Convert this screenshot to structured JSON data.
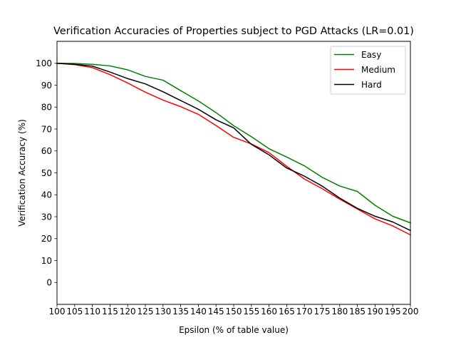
{
  "chart_data": {
    "type": "line",
    "title": "Verification Accuracies of Properties subject to PGD Attacks (LR=0.01)",
    "xlabel": "Epsilon (% of table value)",
    "ylabel": "Verification Accuracy (%)",
    "xlim": [
      100,
      200
    ],
    "ylim": [
      -10,
      110
    ],
    "xticks": [
      100,
      105,
      110,
      115,
      120,
      125,
      130,
      135,
      140,
      145,
      150,
      155,
      160,
      165,
      170,
      175,
      180,
      185,
      190,
      195,
      200
    ],
    "yticks": [
      0,
      10,
      20,
      30,
      40,
      50,
      60,
      70,
      80,
      90,
      100
    ],
    "grid": false,
    "legend_position": "top-right",
    "x": [
      100,
      105,
      110,
      115,
      120,
      125,
      130,
      135,
      140,
      145,
      150,
      155,
      160,
      165,
      170,
      175,
      180,
      185,
      190,
      195,
      200
    ],
    "series": [
      {
        "name": "Easy",
        "color": "#008000",
        "values": [
          100,
          99.9,
          99.5,
          98.8,
          97,
          94,
          92.3,
          87.5,
          82.8,
          77.5,
          71.5,
          66.5,
          61,
          57.2,
          53.2,
          48,
          44,
          41.5,
          35.2,
          30.2,
          27.2
        ]
      },
      {
        "name": "Medium",
        "color": "#ff0000",
        "values": [
          100,
          99.4,
          98,
          94.8,
          91,
          86.8,
          83.2,
          80.2,
          76.7,
          71.6,
          66.2,
          63.2,
          59.2,
          53,
          47.2,
          42.8,
          38,
          33.5,
          29,
          25.8,
          21.7
        ]
      },
      {
        "name": "Hard",
        "color": "#000000",
        "values": [
          100,
          99.5,
          98.7,
          96,
          93,
          90.6,
          87,
          83,
          79,
          74.2,
          70.5,
          63,
          58.2,
          52.2,
          48.5,
          44,
          38.5,
          33.8,
          30.2,
          27.6,
          23.7
        ]
      }
    ]
  }
}
